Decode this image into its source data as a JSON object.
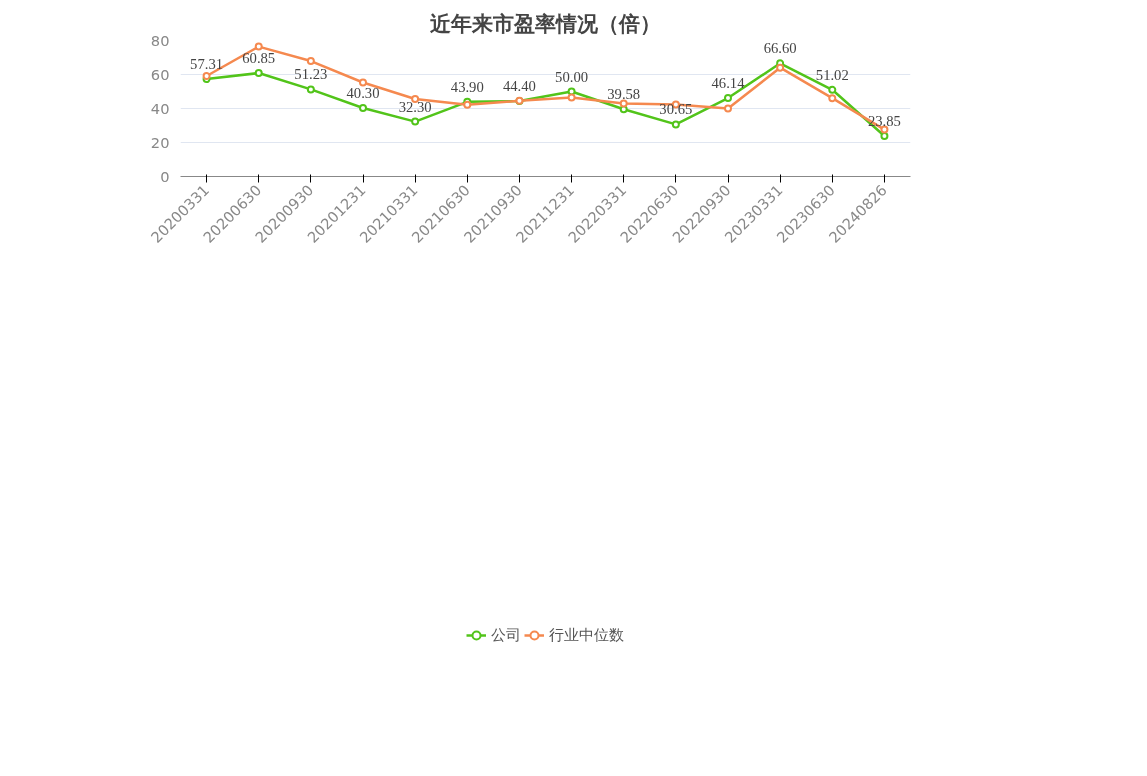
{
  "chart_data": {
    "type": "line",
    "title": "近年来市盈率情况（倍）",
    "categories": [
      "20200331",
      "20200630",
      "20200930",
      "20201231",
      "20210331",
      "20210630",
      "20210930",
      "20211231",
      "20220331",
      "20220630",
      "20220930",
      "20230331",
      "20230630",
      "20240826"
    ],
    "series": [
      {
        "name": "公司",
        "color": "#52c41a",
        "values": [
          57.31,
          60.85,
          51.23,
          40.3,
          32.3,
          43.9,
          44.4,
          50.0,
          39.58,
          30.65,
          46.14,
          66.6,
          51.02,
          23.85
        ],
        "value_labels": [
          "57.31",
          "60.85",
          "51.23",
          "40.30",
          "32.30",
          "43.90",
          "44.40",
          "50.00",
          "39.58",
          "30.65",
          "46.14",
          "66.60",
          "51.02",
          "23.85"
        ]
      },
      {
        "name": "行业中位数",
        "color": "#f5894f",
        "values": [
          59.1,
          76.4,
          67.9,
          55.3,
          45.6,
          42.2,
          44.5,
          46.5,
          42.9,
          42.3,
          40.0,
          64.0,
          46.1,
          27.6
        ]
      }
    ],
    "ylim": [
      0,
      80
    ],
    "yticks": [
      0,
      20,
      40,
      60,
      80
    ],
    "grid": "y",
    "legend": "bottom",
    "marker": "circle",
    "line_style": "solid"
  }
}
